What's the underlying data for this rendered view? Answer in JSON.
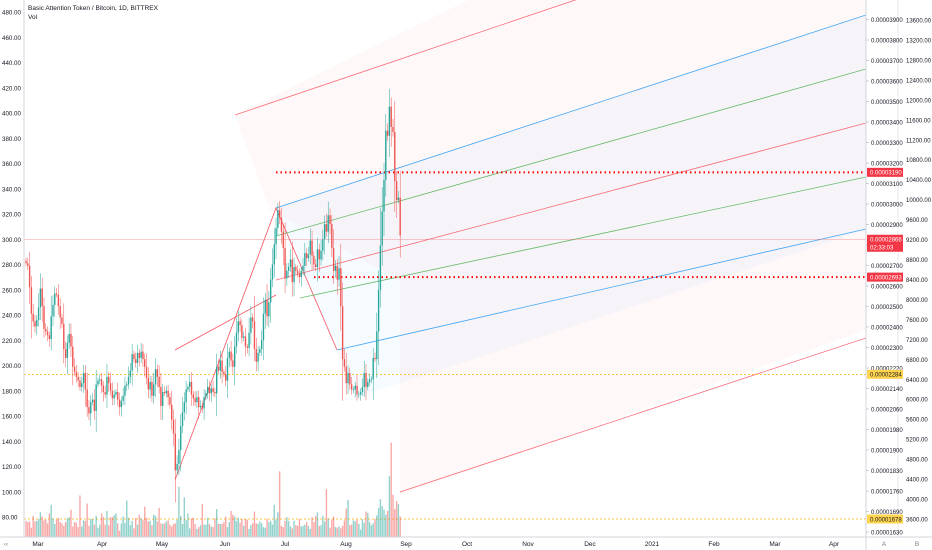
{
  "legend": {
    "title": "Basic Attention Token / Bitcoin, 1D, BITTREX",
    "vol": "Vol"
  },
  "chart_data": {
    "type": "candlestick",
    "symbol": "Basic Attention Token / Bitcoin",
    "interval": "1D",
    "exchange": "BITTREX",
    "left_axis": {
      "ticks": [
        "480.00",
        "460.00",
        "440.00",
        "420.00",
        "400.00",
        "380.00",
        "360.00",
        "340.00",
        "320.00",
        "300.00",
        "280.00",
        "260.00",
        "240.00",
        "220.00",
        "200.00",
        "180.00",
        "160.00",
        "140.00",
        "120.00",
        "100.00",
        "80.00"
      ],
      "range": [
        75,
        482
      ]
    },
    "price_axis": {
      "ticks": [
        "0.00003900",
        "0.00003800",
        "0.00003700",
        "0.00003600",
        "0.00003500",
        "0.00003400",
        "0.00003300",
        "0.00003200",
        "0.00003100",
        "0.00003000",
        "0.00002900",
        "0.00002800",
        "0.00002700",
        "0.00002600",
        "0.00002500",
        "0.00002400",
        "0.00002300",
        "0.00002220",
        "0.00002140",
        "0.00002060",
        "0.00001980",
        "0.00001900",
        "0.00001830",
        "0.00001760",
        "0.00001690",
        "0.00001630"
      ]
    },
    "usd_axis": {
      "ticks": [
        "13600.00",
        "13200.00",
        "12800.00",
        "12400.00",
        "12000.00",
        "11600.00",
        "11200.00",
        "10800.00",
        "10400.00",
        "10000.00",
        "9600.00",
        "9200.00",
        "8800.00",
        "8400.00",
        "8000.00",
        "7600.00",
        "7200.00",
        "6800.00",
        "6400.00",
        "6000.00",
        "5600.00",
        "5200.00",
        "4800.00",
        "4400.00",
        "4000.00",
        "3600.00"
      ]
    },
    "time_axis": [
      "Mar",
      "Apr",
      "May",
      "Jun",
      "Jul",
      "Aug",
      "Sep",
      "Oct",
      "Nov",
      "Dec",
      "2021",
      "Feb",
      "Mar",
      "Apr"
    ],
    "price_labels": [
      {
        "text": "0.00003190",
        "color": "#f23645"
      },
      {
        "text": "0.00002866",
        "color": "#f23645"
      },
      {
        "text": "02:33:03",
        "color": "#f23645"
      },
      {
        "text": "0.00002693",
        "color": "#f23645"
      },
      {
        "text": "0.00002284",
        "color": "#ffd54f"
      },
      {
        "text": "0.00001678",
        "color": "#ffd54f"
      }
    ],
    "series": [
      {
        "name": "",
        "values": [
          281,
          279,
          262,
          241,
          235,
          231,
          236,
          246,
          261,
          247,
          229,
          227,
          224,
          221,
          239,
          248,
          257,
          256,
          247,
          238,
          233,
          213,
          206,
          218,
          225,
          215,
          199,
          195,
          191,
          188,
          183,
          186,
          194,
          181,
          167,
          162,
          171,
          173,
          164,
          185,
          188,
          189,
          184,
          179,
          177,
          191,
          186,
          180,
          174,
          177,
          179,
          173,
          167,
          172,
          176,
          184,
          185,
          191,
          196,
          209,
          205,
          202,
          210,
          206,
          211,
          205,
          199,
          190,
          181,
          187,
          176,
          185,
          197,
          191,
          183,
          168,
          179,
          178,
          180,
          175,
          169,
          157,
          146,
          117,
          122,
          133,
          152,
          163,
          171,
          181,
          183,
          187,
          177,
          174,
          171,
          175,
          167,
          168,
          166,
          175,
          178,
          183,
          178,
          182,
          179,
          178,
          199,
          196,
          204,
          195,
          193,
          188,
          206,
          211,
          204,
          199,
          215,
          226,
          235,
          232,
          222,
          223,
          215,
          214,
          226,
          238,
          235,
          213,
          203,
          210,
          213,
          220,
          241,
          252,
          239,
          250,
          268,
          280,
          296,
          309,
          323,
          317,
          306,
          293,
          269,
          275,
          278,
          284,
          266,
          278,
          275,
          273,
          270,
          275,
          279,
          289,
          285,
          288,
          299,
          287,
          280,
          278,
          292,
          284,
          291,
          300,
          312,
          306,
          319,
          312,
          293,
          275,
          279,
          268,
          277,
          247,
          205,
          199,
          186,
          194,
          185,
          181,
          181,
          184,
          177,
          177,
          179,
          183,
          194,
          183,
          187,
          189,
          189,
          206,
          205,
          227,
          260,
          295,
          322,
          347,
          386,
          382,
          405,
          389,
          385,
          346,
          331,
          333,
          303
        ]
      }
    ],
    "volumes": [
      26,
      24,
      25,
      15,
      34,
      25,
      26,
      29,
      40,
      33,
      27,
      28,
      22,
      38,
      52,
      30,
      21,
      28,
      31,
      24,
      22,
      18,
      24,
      30,
      32,
      44,
      17,
      24,
      23,
      16,
      67,
      17,
      27,
      26,
      54,
      18,
      29,
      29,
      20,
      34,
      15,
      20,
      38,
      32,
      20,
      42,
      19,
      32,
      32,
      35,
      38,
      22,
      10,
      22,
      33,
      23,
      59,
      31,
      19,
      26,
      14,
      31,
      20,
      36,
      30,
      28,
      49,
      31,
      25,
      26,
      19,
      36,
      34,
      25,
      47,
      22,
      21,
      22,
      25,
      27,
      20,
      17,
      21,
      22,
      28,
      81,
      34,
      21,
      64,
      27,
      38,
      14,
      30,
      31,
      21,
      13,
      16,
      19,
      53,
      20,
      20,
      31,
      21,
      17,
      16,
      30,
      45,
      21,
      21,
      21,
      24,
      33,
      16,
      24,
      42,
      36,
      33,
      26,
      31,
      23,
      29,
      18,
      29,
      28,
      13,
      19,
      22,
      41,
      22,
      21,
      25,
      22,
      16,
      15,
      29,
      24,
      26,
      20,
      52,
      28,
      40,
      106,
      18,
      16,
      26,
      32,
      26,
      17,
      14,
      26,
      19,
      18,
      29,
      17,
      18,
      20,
      24,
      18,
      13,
      32,
      24,
      34,
      40,
      18,
      19,
      34,
      25,
      77,
      30,
      15,
      28,
      33,
      16,
      15,
      17,
      14,
      18,
      27,
      46,
      60,
      19,
      20,
      27,
      25,
      28,
      21,
      12,
      29,
      23,
      41,
      39,
      24,
      19,
      22,
      29,
      35,
      47,
      61,
      50,
      44,
      36,
      42,
      98,
      152,
      68,
      45,
      58,
      53,
      33,
      25,
      43,
      33
    ]
  }
}
